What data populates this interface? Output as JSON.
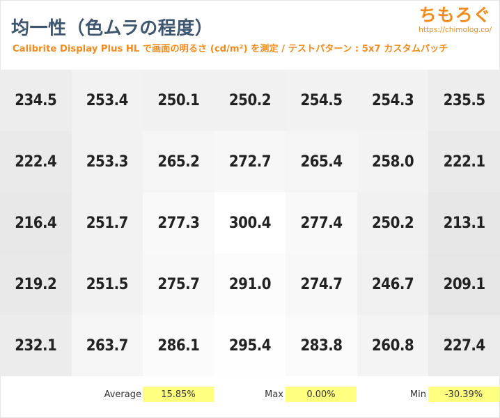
{
  "header": {
    "title": "均一性（色ムラの程度）",
    "subtitle": "Calibrite Display Plus HL で画面の明るさ (cd/m²) を測定 / テストパターン : 5x7 カスタムパッチ"
  },
  "brand": {
    "name": "ちもろぐ",
    "url": "https://chimolog.co/"
  },
  "chart_data": {
    "type": "heatmap",
    "title": "均一性（色ムラの程度）",
    "subtitle": "Calibrite Display Plus HL で画面の明るさ (cd/m²) を測定 / テストパターン : 5x7 カスタムパッチ",
    "unit": "cd/m²",
    "rows": 5,
    "cols": 7,
    "values": [
      [
        234.5,
        253.4,
        250.1,
        250.2,
        254.5,
        254.3,
        235.5
      ],
      [
        222.4,
        253.3,
        265.2,
        272.7,
        265.4,
        258.0,
        222.1
      ],
      [
        216.4,
        251.7,
        277.3,
        300.4,
        277.4,
        250.2,
        213.1
      ],
      [
        219.2,
        251.5,
        275.7,
        291.0,
        274.7,
        246.7,
        209.1
      ],
      [
        232.1,
        263.7,
        286.1,
        295.4,
        283.8,
        260.8,
        227.4
      ]
    ],
    "labels": [
      [
        "234.5",
        "253.4",
        "250.1",
        "250.2",
        "254.5",
        "254.3",
        "235.5"
      ],
      [
        "222.4",
        "253.3",
        "265.2",
        "272.7",
        "265.4",
        "258.0",
        "222.1"
      ],
      [
        "216.4",
        "251.7",
        "277.3",
        "300.4",
        "277.4",
        "250.2",
        "213.1"
      ],
      [
        "219.2",
        "251.5",
        "275.7",
        "291.0",
        "274.7",
        "246.7",
        "209.1"
      ],
      [
        "232.1",
        "263.7",
        "286.1",
        "295.4",
        "283.8",
        "260.8",
        "227.4"
      ]
    ],
    "color_scale": {
      "low": "#e6e6e6",
      "high": "#ffffff"
    }
  },
  "stats": {
    "average_label": "Average",
    "average_value": "15.85%",
    "max_label": "Max",
    "max_value": "0.00%",
    "min_label": "Min",
    "min_value": "-30.39%",
    "highlight_color": "#ffff80"
  }
}
